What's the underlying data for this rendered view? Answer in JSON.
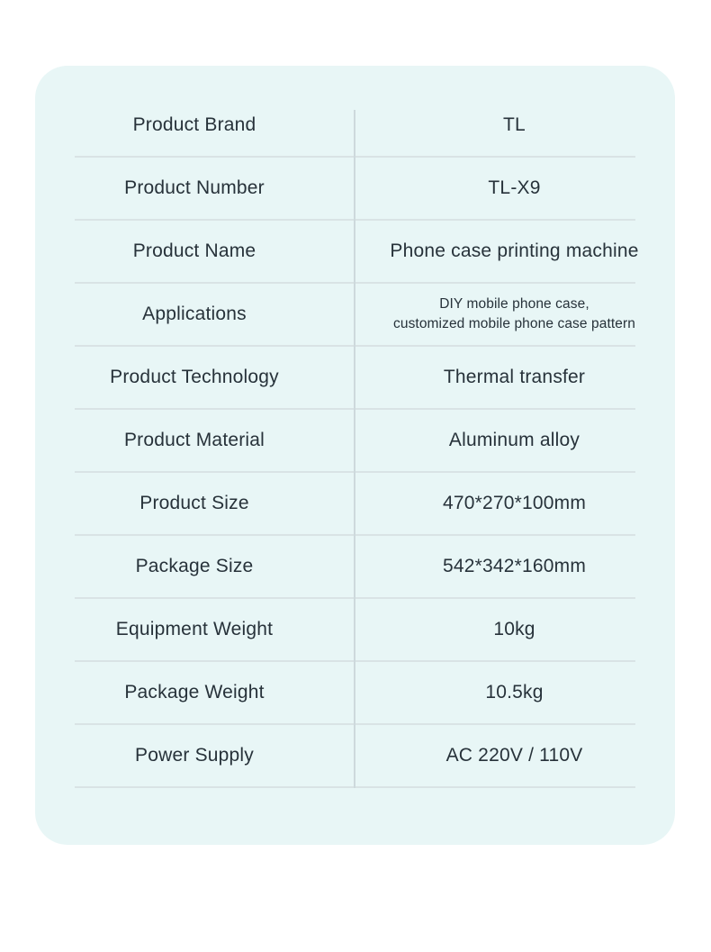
{
  "colors": {
    "page_background": "#ffffff",
    "card_background": "#e8f6f6",
    "row_divider": "#d9e3e5",
    "column_divider": "#cdd9dc",
    "text": "#27323a"
  },
  "table": {
    "rows": [
      {
        "label": "Product Brand",
        "value": "TL"
      },
      {
        "label": "Product Number",
        "value": "TL-X9"
      },
      {
        "label": "Product Name",
        "value": "Phone case printing machine"
      },
      {
        "label": "Applications",
        "value": "DIY mobile phone case,\ncustomized mobile phone case pattern",
        "small": true
      },
      {
        "label": "Product Technology",
        "value": "Thermal transfer"
      },
      {
        "label": "Product Material",
        "value": "Aluminum alloy"
      },
      {
        "label": "Product Size",
        "value": "470*270*100mm"
      },
      {
        "label": "Package Size",
        "value": "542*342*160mm"
      },
      {
        "label": "Equipment Weight",
        "value": "10kg"
      },
      {
        "label": "Package Weight",
        "value": "10.5kg"
      },
      {
        "label": "Power Supply",
        "value": "AC 220V / 110V"
      }
    ]
  }
}
